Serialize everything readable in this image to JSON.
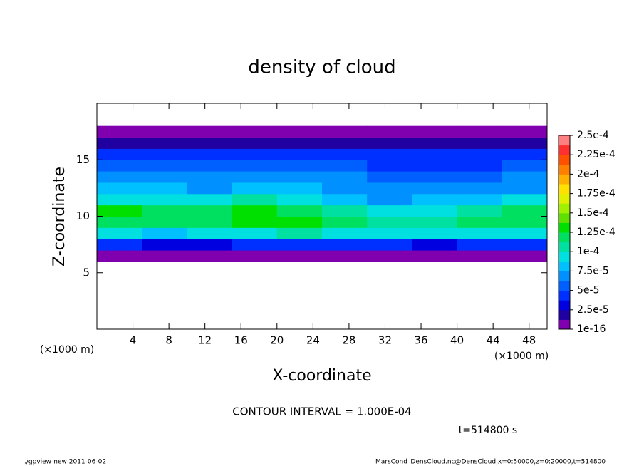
{
  "chart_data": {
    "type": "contour",
    "title": "density of cloud",
    "xlabel": "X-coordinate",
    "ylabel": "Z-coordinate",
    "x_unit": "(×1000 m)",
    "annotation": "CONTOUR INTERVAL = 1.000E-04",
    "time_label": "t=514800 s",
    "footer_left": "./gpview-new   2011-06-02",
    "footer_right": "MarsCond_DensCloud.nc@DensCloud,x=0:50000,z=0:20000,t=514800",
    "xlim": [
      0,
      50
    ],
    "ylim": [
      0,
      20
    ],
    "xticks": [
      4,
      8,
      12,
      16,
      20,
      24,
      28,
      32,
      36,
      40,
      44,
      48
    ],
    "yticks": [
      5,
      10,
      15
    ],
    "x": [
      2.5,
      7.5,
      12.5,
      17.5,
      22.5,
      27.5,
      32.5,
      37.5,
      42.5,
      47.5
    ],
    "y": [
      6.5,
      7.5,
      8.5,
      9.5,
      10.5,
      11.5,
      12.5,
      13.5,
      14.5,
      15.5,
      16.5,
      17.5
    ],
    "values": [
      [
        8e-06,
        8e-06,
        8e-06,
        8e-06,
        8e-06,
        8e-06,
        8e-06,
        8e-06,
        8e-06,
        8e-06
      ],
      [
        4e-05,
        3.5e-05,
        3e-05,
        4e-05,
        4.5e-05,
        4e-05,
        4e-05,
        3.5e-05,
        4e-05,
        4.5e-05
      ],
      [
        9e-05,
        8e-05,
        9e-05,
        0.0001,
        0.000105,
        9.5e-05,
        9e-05,
        9e-05,
        9.5e-05,
        0.0001
      ],
      [
        0.00012,
        0.000115,
        0.000125,
        0.00013,
        0.00013,
        0.000115,
        0.00011,
        0.00011,
        0.000115,
        0.00012
      ],
      [
        0.00013,
        0.000125,
        0.00012,
        0.00013,
        0.00012,
        0.000105,
        9.5e-05,
        0.0001,
        0.00011,
        0.000125
      ],
      [
        0.0001,
        0.0001,
        9e-05,
        0.000105,
        0.0001,
        8.5e-05,
        7.5e-05,
        8e-05,
        8.5e-05,
        9.5e-05
      ],
      [
        8e-05,
        8e-05,
        7.5e-05,
        8e-05,
        8e-05,
        7.5e-05,
        6.5e-05,
        6.5e-05,
        7e-05,
        7.5e-05
      ],
      [
        6.5e-05,
        6.5e-05,
        6.5e-05,
        7e-05,
        7e-05,
        6.5e-05,
        5.5e-05,
        5.5e-05,
        6e-05,
        6.5e-05
      ],
      [
        5.5e-05,
        5.5e-05,
        6e-05,
        6e-05,
        6e-05,
        5.5e-05,
        5e-05,
        5e-05,
        5e-05,
        5.5e-05
      ],
      [
        4.5e-05,
        4.5e-05,
        4.5e-05,
        5e-05,
        5e-05,
        4.5e-05,
        4e-05,
        4e-05,
        4e-05,
        4.5e-05
      ],
      [
        2e-05,
        2e-05,
        2e-05,
        2.5e-05,
        2.5e-05,
        2e-05,
        2e-05,
        2e-05,
        2e-05,
        2e-05
      ],
      [
        5e-06,
        5e-06,
        5e-06,
        5e-06,
        5e-06,
        5e-06,
        5e-06,
        5e-06,
        5e-06,
        5e-06
      ]
    ],
    "clim": [
      1e-16,
      0.00025
    ],
    "colorbar_ticks": [
      {
        "value": 1e-16,
        "label": "1e-16"
      },
      {
        "value": 2.5e-05,
        "label": "2.5e-5"
      },
      {
        "value": 5e-05,
        "label": "5e-5"
      },
      {
        "value": 7.5e-05,
        "label": "7.5e-5"
      },
      {
        "value": 0.0001,
        "label": "1e-4"
      },
      {
        "value": 0.000125,
        "label": "1.25e-4"
      },
      {
        "value": 0.00015,
        "label": "1.5e-4"
      },
      {
        "value": 0.000175,
        "label": "1.75e-4"
      },
      {
        "value": 0.0002,
        "label": "2e-4"
      },
      {
        "value": 0.000225,
        "label": "2.25e-4"
      },
      {
        "value": 0.00025,
        "label": "2.5e-4"
      }
    ],
    "colors": [
      "#8000b0",
      "#2000a0",
      "#0000e0",
      "#0030ff",
      "#0060ff",
      "#0090ff",
      "#00c0ff",
      "#00e0e0",
      "#00e0a0",
      "#00e060",
      "#00e000",
      "#60e000",
      "#a0f000",
      "#e0f000",
      "#ffe000",
      "#ffb000",
      "#ff8000",
      "#ff5000",
      "#ff3030",
      "#ff8080"
    ]
  }
}
